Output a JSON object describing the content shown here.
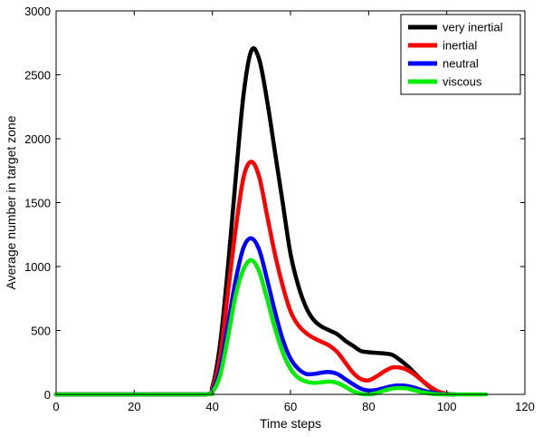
{
  "chart_data": {
    "type": "line",
    "title": "",
    "xlabel": "Time steps",
    "ylabel": "Average number in target zone",
    "xlim": [
      0,
      120
    ],
    "ylim": [
      0,
      3000
    ],
    "xticks": [
      0,
      20,
      40,
      60,
      80,
      100,
      120
    ],
    "yticks": [
      0,
      500,
      1000,
      1500,
      2000,
      2500,
      3000
    ],
    "grid": false,
    "legend_position": "top-right",
    "series": [
      {
        "name": "very inertial",
        "color": "#000000",
        "x": [
          0,
          20,
          38,
          40,
          42,
          44,
          46,
          48,
          50,
          52,
          54,
          56,
          58,
          60,
          62,
          64,
          66,
          68,
          70,
          72,
          74,
          76,
          78,
          80,
          82,
          84,
          86,
          88,
          90,
          92,
          94,
          96,
          98,
          100,
          102
        ],
        "y": [
          0,
          0,
          0,
          60,
          400,
          1000,
          1700,
          2350,
          2690,
          2620,
          2300,
          1900,
          1500,
          1100,
          850,
          680,
          580,
          530,
          500,
          470,
          420,
          380,
          340,
          330,
          325,
          320,
          310,
          270,
          220,
          160,
          100,
          50,
          20,
          5,
          0
        ]
      },
      {
        "name": "inertial",
        "color": "#ff0000",
        "x": [
          0,
          20,
          38,
          40,
          42,
          44,
          46,
          48,
          50,
          52,
          54,
          56,
          58,
          60,
          62,
          64,
          66,
          68,
          70,
          72,
          74,
          76,
          78,
          80,
          82,
          84,
          86,
          88,
          90,
          92,
          94,
          96,
          98,
          100,
          102
        ],
        "y": [
          0,
          0,
          0,
          50,
          300,
          800,
          1300,
          1700,
          1820,
          1700,
          1400,
          1100,
          850,
          650,
          540,
          480,
          440,
          410,
          380,
          330,
          250,
          170,
          120,
          110,
          140,
          180,
          210,
          210,
          190,
          150,
          100,
          55,
          20,
          5,
          0
        ]
      },
      {
        "name": "neutral",
        "color": "#0000ff",
        "x": [
          0,
          20,
          38,
          40,
          42,
          44,
          46,
          48,
          50,
          52,
          54,
          56,
          58,
          60,
          62,
          64,
          66,
          68,
          70,
          72,
          74,
          76,
          78,
          80,
          82,
          84,
          86,
          88,
          90,
          92,
          94,
          96,
          98,
          100,
          102
        ],
        "y": [
          0,
          0,
          0,
          30,
          200,
          550,
          900,
          1150,
          1220,
          1130,
          900,
          650,
          430,
          280,
          200,
          160,
          160,
          170,
          175,
          160,
          120,
          80,
          45,
          30,
          35,
          50,
          65,
          70,
          65,
          50,
          30,
          15,
          5,
          0,
          0
        ]
      },
      {
        "name": "viscous",
        "color": "#00ee00",
        "x": [
          0,
          20,
          38,
          40,
          42,
          44,
          46,
          48,
          50,
          52,
          54,
          56,
          58,
          60,
          62,
          64,
          66,
          68,
          70,
          72,
          74,
          76,
          78,
          80,
          82,
          84,
          86,
          88,
          90,
          92,
          94,
          96,
          98,
          100,
          102,
          104,
          106,
          108,
          110
        ],
        "y": [
          0,
          0,
          0,
          20,
          150,
          450,
          780,
          980,
          1050,
          960,
          750,
          520,
          330,
          200,
          130,
          100,
          90,
          95,
          100,
          90,
          60,
          25,
          5,
          0,
          10,
          30,
          45,
          50,
          45,
          30,
          15,
          5,
          0,
          0,
          0,
          0,
          0,
          0,
          0
        ]
      }
    ]
  }
}
